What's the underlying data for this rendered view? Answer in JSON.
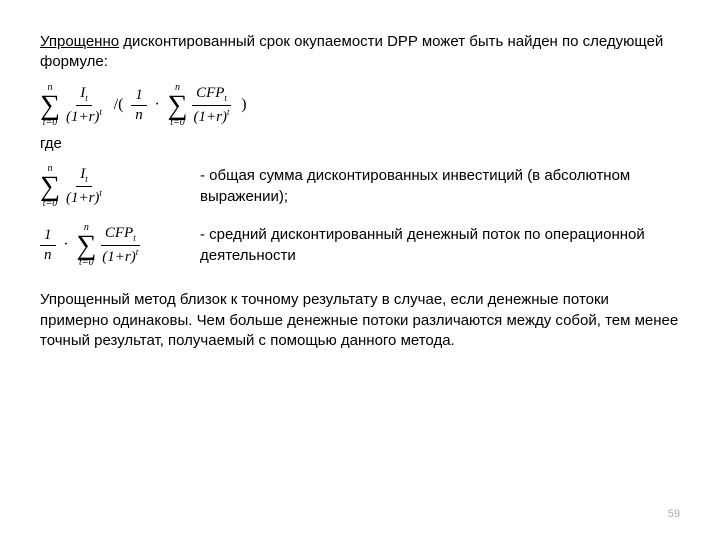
{
  "intro_underline": "Упрощенно",
  "intro_rest": " дисконтированный срок окупаемости DPP может быть найден по следующей формуле:",
  "where": "где",
  "def1": "- общая сумма дисконтированных инвестиций (в абсолютном выражении);",
  "def2": "- средний дисконтированный денежный поток по операционной деятельности",
  "closing": "Упрощенный метод близок к точному результату в случае, если денежные потоки примерно одинаковы. Чем больше денежные потоки различаются между собой, тем менее точный результат, получаемый с помощью данного метода.",
  "page": "59",
  "math": {
    "sum_upper": "n",
    "sum_lower": "t=0",
    "I_num": "I",
    "CFP_num": "CFP",
    "den_base": "(1+r)",
    "den_exp": "t",
    "sub_t": "t",
    "one": "1",
    "n": "n",
    "div": "/(",
    "dot": "·",
    "close": ")"
  }
}
